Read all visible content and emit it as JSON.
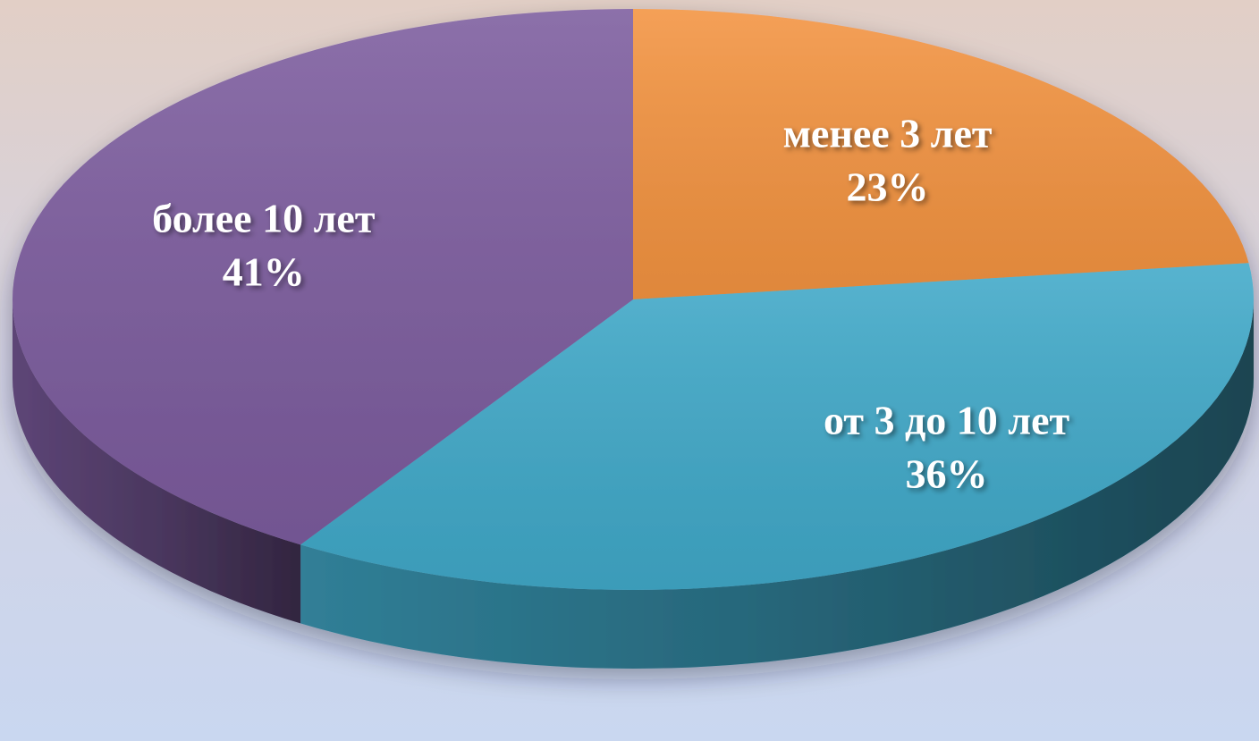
{
  "chart_data": {
    "type": "pie",
    "categories": [
      "менее 3 лет",
      "от 3 до 10 лет",
      "более 10 лет"
    ],
    "values": [
      23,
      36,
      41
    ],
    "value_labels": [
      "23%",
      "36%",
      "41%"
    ],
    "colors": [
      "#f39340",
      "#40a9c9",
      "#7c5c9e"
    ]
  }
}
